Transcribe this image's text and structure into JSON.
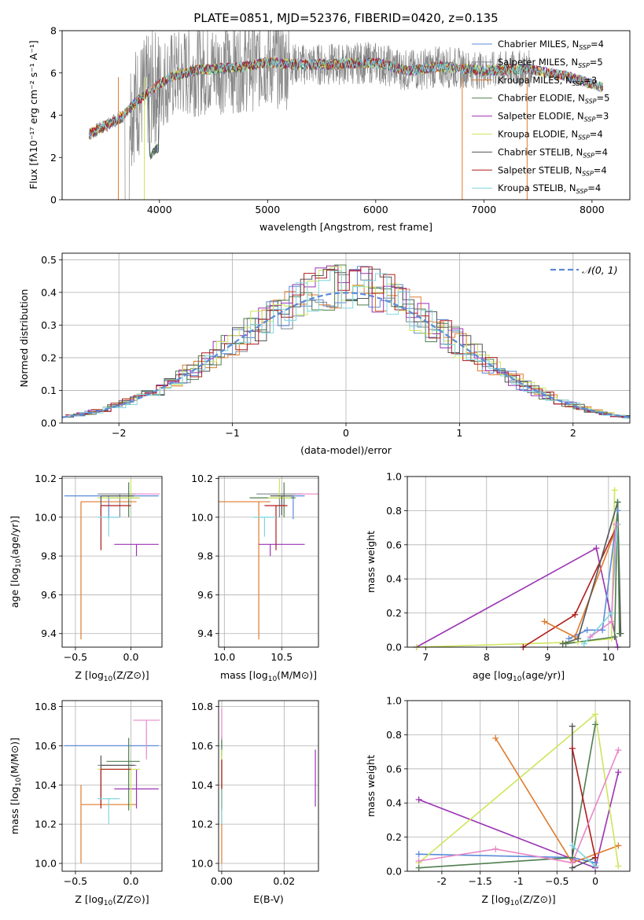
{
  "figure": {
    "title": "PLATE=0851, MJD=52376, FIBERID=0420, z=0.135"
  },
  "colors": {
    "Chabrier MILES": "#5b8bd8",
    "Salpeter MILES": "#7b8793",
    "Kroupa MILES": "#e07a2c",
    "Chabrier ELODIE": "#4f7f4f",
    "Salpeter ELODIE": "#9b33b3",
    "Kroupa ELODIE": "#cce65a",
    "Chabrier STELIB": "#555555",
    "Salpeter STELIB": "#b01c1c",
    "Kroupa STELIB": "#7fd6de",
    "pink": "#e887c8",
    "data": "#888888",
    "gauss": "#5b8bd8"
  },
  "chart_data": [
    {
      "id": "spectrum",
      "type": "line",
      "title": "PLATE=0851, MJD=52376, FIBERID=0420, z=0.135",
      "xlabel": "wavelength [Angstrom, rest frame]",
      "ylabel": "Flux [fλ10⁻¹⁷ erg cm⁻² s⁻¹ A⁻¹]",
      "xlim": [
        3100,
        8350
      ],
      "ylim": [
        0,
        8
      ],
      "xticks": [
        4000,
        5000,
        6000,
        7000,
        8000
      ],
      "yticks": [
        0,
        2,
        4,
        6,
        8
      ],
      "legend_position": "top-right",
      "series": [
        {
          "name": "Chabrier MILES, N$_{SSP}$=4",
          "label_main": "Chabrier MILES, N",
          "label_sub": "SSP",
          "label_end": "=4"
        },
        {
          "name": "Salpeter MILES, N$_{SSP}$=5",
          "label_main": "Salpeter MILES, N",
          "label_sub": "SSP",
          "label_end": "=5"
        },
        {
          "name": "Kroupa MILES, N$_{SSP}$=3",
          "label_main": "Kroupa MILES, N",
          "label_sub": "SSP",
          "label_end": "=3"
        },
        {
          "name": "Chabrier ELODIE, N$_{SSP}$=5",
          "label_main": "Chabrier ELODIE, N",
          "label_sub": "SSP",
          "label_end": "=5"
        },
        {
          "name": "Salpeter ELODIE, N$_{SSP}$=3",
          "label_main": "Salpeter ELODIE, N",
          "label_sub": "SSP",
          "label_end": "=3"
        },
        {
          "name": "Kroupa ELODIE, N$_{SSP}$=4",
          "label_main": "Kroupa ELODIE, N",
          "label_sub": "SSP",
          "label_end": "=4"
        },
        {
          "name": "Chabrier STELIB, N$_{SSP}$=4",
          "label_main": "Chabrier STELIB, N",
          "label_sub": "SSP",
          "label_end": "=4"
        },
        {
          "name": "Salpeter STELIB, N$_{SSP}$=4",
          "label_main": "Salpeter STELIB, N",
          "label_sub": "SSP",
          "label_end": "=4"
        },
        {
          "name": "Kroupa STELIB, N$_{SSP}$=4",
          "label_main": "Kroupa STELIB, N",
          "label_sub": "SSP",
          "label_end": "=4"
        }
      ],
      "continuum": {
        "x": [
          3350,
          3500,
          3650,
          3800,
          3950,
          4100,
          4300,
          4500,
          4800,
          5000,
          5300,
          5600,
          6000,
          6300,
          6600,
          7000,
          7400,
          7800,
          8100
        ],
        "y": [
          3.1,
          3.5,
          3.9,
          4.7,
          5.3,
          5.8,
          6.1,
          6.2,
          6.3,
          6.5,
          6.4,
          6.4,
          6.5,
          6.1,
          6.3,
          6.1,
          6.2,
          5.8,
          5.3
        ]
      }
    },
    {
      "id": "residuals",
      "type": "line",
      "xlabel": "(data-model)/error",
      "ylabel": "Normed distribution",
      "xlim": [
        -2.5,
        2.5
      ],
      "ylim": [
        0,
        0.52
      ],
      "xticks": [
        -2,
        -1,
        0,
        1,
        2
      ],
      "yticks": [
        0.0,
        0.1,
        0.2,
        0.3,
        0.4,
        0.5
      ],
      "legend_label": "𝒩(0, 1)",
      "bin_width": 0.1,
      "grid": true
    },
    {
      "id": "age-vs-Z",
      "type": "scatter",
      "xlabel_main": "Z [log",
      "xlabel_sub": "10",
      "xlabel_end": "(Z/Z⊙)]",
      "ylabel_main": "age  [log",
      "ylabel_sub": "10",
      "ylabel_end": "(age/yr)]",
      "xlim": [
        -0.62,
        0.28
      ],
      "ylim": [
        9.33,
        10.21
      ],
      "xticks": [
        -0.5,
        0.0
      ],
      "yticks": [
        9.4,
        9.6,
        9.8,
        10.0,
        10.2
      ],
      "points": [
        {
          "model": "Chabrier MILES",
          "x": -0.2,
          "xerr": [
            0.4,
            0.45
          ],
          "y": 10.11,
          "yerr": [
            0.12,
            0.0
          ]
        },
        {
          "model": "Salpeter MILES",
          "x": -0.1,
          "xerr": [
            0.2,
            0.15
          ],
          "y": 10.12,
          "yerr": [
            0.12,
            0.0
          ]
        },
        {
          "model": "Kroupa MILES",
          "x": -0.45,
          "xerr": [
            0.0,
            0.5
          ],
          "y": 10.08,
          "yerr": [
            0.71,
            0.0
          ]
        },
        {
          "model": "Chabrier ELODIE",
          "x": -0.02,
          "xerr": [
            0.2,
            0.1
          ],
          "y": 10.1,
          "yerr": [
            0.1,
            0.08
          ]
        },
        {
          "model": "Salpeter ELODIE",
          "x": 0.05,
          "xerr": [
            0.2,
            0.2
          ],
          "y": 9.86,
          "yerr": [
            0.06,
            0.0
          ]
        },
        {
          "model": "Kroupa ELODIE",
          "x": 0.0,
          "xerr": [
            0.3,
            0.08
          ],
          "y": 10.1,
          "yerr": [
            0.0,
            0.1
          ]
        },
        {
          "model": "Chabrier STELIB",
          "x": -0.27,
          "xerr": [
            0.0,
            0.3
          ],
          "y": 10.11,
          "yerr": [
            0.1,
            0.0
          ]
        },
        {
          "model": "Salpeter STELIB",
          "x": -0.27,
          "xerr": [
            0.0,
            0.27
          ],
          "y": 10.06,
          "yerr": [
            0.23,
            0.0
          ]
        },
        {
          "model": "Kroupa STELIB",
          "x": -0.2,
          "xerr": [
            0.1,
            0.1
          ],
          "y": 10.0,
          "yerr": [
            0.1,
            0.0
          ]
        },
        {
          "model": "pink",
          "x": 0.14,
          "xerr": [
            0.12,
            0.12
          ],
          "y": 10.12,
          "yerr": [
            0.0,
            0.0
          ]
        }
      ]
    },
    {
      "id": "age-vs-mass",
      "type": "scatter",
      "xlabel_main": "mass [log",
      "xlabel_sub": "10",
      "xlabel_end": "(M/M⊙)]",
      "xlim": [
        9.95,
        10.82
      ],
      "ylim": [
        9.33,
        10.21
      ],
      "xticks": [
        10.0,
        10.5
      ],
      "yticks": [
        9.4,
        9.6,
        9.8,
        10.0,
        10.2
      ],
      "points": [
        {
          "model": "Chabrier MILES",
          "x": 10.6,
          "xerr": [
            0.0,
            0.0
          ],
          "y": 10.11,
          "yerr": [
            0.12,
            0.0
          ]
        },
        {
          "model": "Salpeter MILES",
          "x": 10.48,
          "xerr": [
            0.1,
            0.1
          ],
          "y": 10.12,
          "yerr": [
            0.12,
            0.0
          ]
        },
        {
          "model": "Kroupa MILES",
          "x": 10.3,
          "xerr": [
            0.3,
            0.0
          ],
          "y": 10.08,
          "yerr": [
            0.71,
            0.0
          ]
        },
        {
          "model": "Chabrier ELODIE",
          "x": 10.52,
          "xerr": [
            0.2,
            0.0
          ],
          "y": 10.1,
          "yerr": [
            0.1,
            0.08
          ]
        },
        {
          "model": "Salpeter ELODIE",
          "x": 10.4,
          "xerr": [
            0.0,
            0.2
          ],
          "y": 9.86,
          "yerr": [
            0.06,
            0.0
          ]
        },
        {
          "model": "Kroupa ELODIE",
          "x": 10.48,
          "xerr": [
            0.0,
            0.0
          ],
          "y": 10.1,
          "yerr": [
            0.0,
            0.1
          ]
        },
        {
          "model": "Chabrier STELIB",
          "x": 10.5,
          "xerr": [
            0.0,
            0.0
          ],
          "y": 10.11,
          "yerr": [
            0.1,
            0.0
          ]
        },
        {
          "model": "Salpeter STELIB",
          "x": 10.45,
          "xerr": [
            0.0,
            0.0
          ],
          "y": 10.06,
          "yerr": [
            0.23,
            0.0
          ]
        },
        {
          "model": "Kroupa STELIB",
          "x": 10.35,
          "xerr": [
            0.0,
            0.0
          ],
          "y": 10.0,
          "yerr": [
            0.1,
            0.0
          ]
        },
        {
          "model": "pink",
          "x": 10.72,
          "xerr": [
            0.0,
            0.0
          ],
          "y": 10.12,
          "yerr": [
            0.0,
            0.0
          ]
        }
      ]
    },
    {
      "id": "mass-weight-vs-age",
      "type": "line",
      "xlabel_main": "age  [log",
      "xlabel_sub": "10",
      "xlabel_end": "(age/yr)]",
      "ylabel": "mass weight",
      "xlim": [
        6.7,
        10.35
      ],
      "ylim": [
        0,
        1.0
      ],
      "xticks": [
        7,
        8,
        9,
        10
      ],
      "yticks": [
        0.0,
        0.2,
        0.4,
        0.6,
        0.8,
        1.0
      ],
      "series": [
        {
          "model": "Salpeter ELODIE",
          "x": [
            6.85,
            9.8,
            10.15
          ],
          "y": [
            0.0,
            0.58,
            0.0
          ]
        },
        {
          "model": "Kroupa ELODIE",
          "x": [
            6.85,
            9.5,
            10.05,
            10.1
          ],
          "y": [
            0.0,
            0.03,
            0.05,
            0.92
          ]
        },
        {
          "model": "Salpeter STELIB",
          "x": [
            8.6,
            9.45,
            10.15
          ],
          "y": [
            0.0,
            0.19,
            0.72
          ]
        },
        {
          "model": "Kroupa MILES",
          "x": [
            8.95,
            9.45,
            10.15
          ],
          "y": [
            0.15,
            0.06,
            0.72
          ]
        },
        {
          "model": "Chabrier MILES",
          "x": [
            9.35,
            9.65,
            9.9,
            10.15
          ],
          "y": [
            0.05,
            0.1,
            0.1,
            0.8
          ]
        },
        {
          "model": "Chabrier STELIB",
          "x": [
            9.25,
            9.5,
            10.15,
            10.2
          ],
          "y": [
            0.02,
            0.05,
            0.85,
            0.08
          ]
        },
        {
          "model": "Chabrier ELODIE",
          "x": [
            9.3,
            10.1,
            10.15,
            10.18
          ],
          "y": [
            0.02,
            0.06,
            0.85,
            0.08
          ]
        },
        {
          "model": "Kroupa STELIB",
          "x": [
            9.6,
            10.05,
            10.15
          ],
          "y": [
            0.02,
            0.2,
            0.72
          ]
        },
        {
          "model": "pink",
          "x": [
            9.7,
            10.05,
            10.12
          ],
          "y": [
            0.06,
            0.15,
            0.72
          ]
        }
      ]
    },
    {
      "id": "mass-vs-Z",
      "type": "scatter",
      "xlabel_main": "Z [log",
      "xlabel_sub": "10",
      "xlabel_end": "(Z/Z⊙)]",
      "ylabel_main": "mass [log",
      "ylabel_sub": "10",
      "ylabel_end": "(M/M⊙)]",
      "xlim": [
        -0.62,
        0.28
      ],
      "ylim": [
        9.96,
        10.83
      ],
      "xticks": [
        -0.5,
        0.0
      ],
      "yticks": [
        10.0,
        10.2,
        10.4,
        10.6,
        10.8
      ],
      "points": [
        {
          "model": "Chabrier MILES",
          "x": -0.2,
          "xerr": [
            0.4,
            0.45
          ],
          "y": 10.6,
          "yerr": [
            0.0,
            0.0
          ]
        },
        {
          "model": "Salpeter MILES",
          "x": -0.1,
          "xerr": [
            0.2,
            0.15
          ],
          "y": 10.5,
          "yerr": [
            0.0,
            0.0
          ]
        },
        {
          "model": "Kroupa MILES",
          "x": -0.45,
          "xerr": [
            0.0,
            0.5
          ],
          "y": 10.3,
          "yerr": [
            0.3,
            0.1
          ]
        },
        {
          "model": "Chabrier ELODIE",
          "x": -0.02,
          "xerr": [
            0.2,
            0.1
          ],
          "y": 10.52,
          "yerr": [
            0.25,
            0.12
          ]
        },
        {
          "model": "Salpeter ELODIE",
          "x": 0.05,
          "xerr": [
            0.2,
            0.2
          ],
          "y": 10.38,
          "yerr": [
            0.1,
            0.1
          ]
        },
        {
          "model": "Kroupa ELODIE",
          "x": 0.0,
          "xerr": [
            0.3,
            0.08
          ],
          "y": 10.48,
          "yerr": [
            0.2,
            0.0
          ]
        },
        {
          "model": "Chabrier STELIB",
          "x": -0.27,
          "xerr": [
            0.0,
            0.3
          ],
          "y": 10.5,
          "yerr": [
            0.2,
            0.05
          ]
        },
        {
          "model": "Salpeter STELIB",
          "x": -0.27,
          "xerr": [
            0.0,
            0.27
          ],
          "y": 10.48,
          "yerr": [
            0.2,
            0.0
          ]
        },
        {
          "model": "Kroupa STELIB",
          "x": -0.2,
          "xerr": [
            0.1,
            0.1
          ],
          "y": 10.33,
          "yerr": [
            0.13,
            0.0
          ]
        },
        {
          "model": "pink",
          "x": 0.14,
          "xerr": [
            0.12,
            0.12
          ],
          "y": 10.73,
          "yerr": [
            0.2,
            0.0
          ]
        }
      ]
    },
    {
      "id": "mass-vs-EBV",
      "type": "scatter",
      "xlabel": "E(B-V)",
      "xlim": [
        -0.001,
        0.031
      ],
      "ylim": [
        9.96,
        10.83
      ],
      "xticks": [
        0.0,
        0.02
      ],
      "yticks": [
        10.0,
        10.2,
        10.4,
        10.6,
        10.8
      ],
      "points": [
        {
          "model": "Chabrier MILES",
          "x": 0.0,
          "y": 10.6,
          "yerr": [
            0.05,
            0.05
          ]
        },
        {
          "model": "Kroupa MILES",
          "x": 0.0,
          "y": 10.3,
          "yerr": [
            0.3,
            0.1
          ]
        },
        {
          "model": "Chabrier ELODIE",
          "x": 0.0,
          "y": 10.52,
          "yerr": [
            0.25,
            0.12
          ]
        },
        {
          "model": "Kroupa ELODIE",
          "x": 0.0,
          "y": 10.48,
          "yerr": [
            0.2,
            0.1
          ]
        },
        {
          "model": "Salpeter STELIB",
          "x": 0.0,
          "y": 10.48,
          "yerr": [
            0.2,
            0.05
          ]
        },
        {
          "model": "Kroupa STELIB",
          "x": 0.0,
          "y": 10.33,
          "yerr": [
            0.13,
            0.05
          ]
        },
        {
          "model": "pink",
          "x": 0.0,
          "y": 10.73,
          "yerr": [
            0.1,
            0.06
          ]
        },
        {
          "model": "Salpeter ELODIE",
          "x": 0.03,
          "y": 10.43,
          "yerr": [
            0.14,
            0.15
          ]
        }
      ]
    },
    {
      "id": "mass-weight-vs-Z",
      "type": "line",
      "xlabel_main": "Z [log",
      "xlabel_sub": "10",
      "xlabel_end": "(Z/Z⊙)]",
      "ylabel": "mass weight",
      "xlim": [
        -2.45,
        0.45
      ],
      "ylim": [
        0,
        1.0
      ],
      "xticks": [
        -2.0,
        -1.5,
        -1.0,
        -0.5,
        0.0
      ],
      "yticks": [
        0.0,
        0.2,
        0.4,
        0.6,
        0.8,
        1.0
      ],
      "series": [
        {
          "model": "Chabrier MILES",
          "x": [
            -2.3,
            -0.3,
            0.0
          ],
          "y": [
            0.1,
            0.08,
            0.05
          ]
        },
        {
          "model": "Salpeter ELODIE",
          "x": [
            -2.3,
            0.0,
            0.3
          ],
          "y": [
            0.42,
            0.02,
            0.58
          ]
        },
        {
          "model": "Kroupa MILES",
          "x": [
            -1.3,
            -0.3,
            0.3
          ],
          "y": [
            0.78,
            0.05,
            0.15
          ]
        },
        {
          "model": "Kroupa ELODIE",
          "x": [
            -2.3,
            0.0,
            0.3
          ],
          "y": [
            0.05,
            0.92,
            0.03
          ]
        },
        {
          "model": "Chabrier ELODIE",
          "x": [
            -2.3,
            -0.3,
            0.0
          ],
          "y": [
            0.02,
            0.08,
            0.86
          ]
        },
        {
          "model": "Chabrier STELIB",
          "x": [
            -0.3,
            -0.3,
            0.0
          ],
          "y": [
            0.85,
            0.02,
            0.08
          ]
        },
        {
          "model": "Salpeter STELIB",
          "x": [
            -0.3,
            0.0,
            0.0
          ],
          "y": [
            0.72,
            0.08,
            0.03
          ]
        },
        {
          "model": "Kroupa STELIB",
          "x": [
            -0.3,
            0.0
          ],
          "y": [
            0.15,
            0.03
          ]
        },
        {
          "model": "pink",
          "x": [
            -2.3,
            -1.3,
            -0.3,
            0.3
          ],
          "y": [
            0.06,
            0.13,
            0.05,
            0.71
          ]
        }
      ]
    }
  ]
}
